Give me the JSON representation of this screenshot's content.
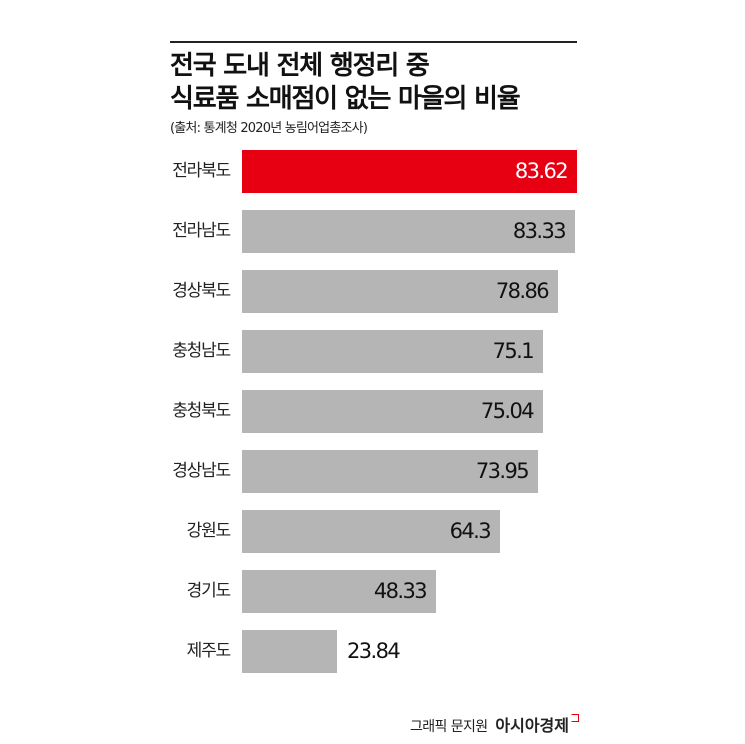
{
  "header": {
    "title_line1": "전국 도내 전체 행정리 중",
    "title_line2": "식료품 소매점이 없는 마을의 비율",
    "source": "(출처: 통계청 2020년 농림어업총조사)"
  },
  "rows": [
    {
      "label": "전라북도",
      "value": "83.62"
    },
    {
      "label": "전라남도",
      "value": "83.33"
    },
    {
      "label": "경상북도",
      "value": "78.86"
    },
    {
      "label": "충청남도",
      "value": "75.1"
    },
    {
      "label": "충청북도",
      "value": "75.04"
    },
    {
      "label": "경상남도",
      "value": "73.95"
    },
    {
      "label": "강원도",
      "value": "64.3"
    },
    {
      "label": "경기도",
      "value": "48.33"
    },
    {
      "label": "제주도",
      "value": "23.84"
    }
  ],
  "footer": {
    "credit": "그래픽 문지원",
    "brand": "아시아경제"
  },
  "colors": {
    "highlight": "#e60012",
    "bar": "#b4b5b4",
    "text": "#111111"
  },
  "chart_data": {
    "type": "bar",
    "orientation": "horizontal",
    "title": "전국 도내 전체 행정리 중 식료품 소매점이 없는 마을의 비율",
    "subtitle": "(출처: 통계청 2020년 농림어업총조사)",
    "categories": [
      "전라북도",
      "전라남도",
      "경상북도",
      "충청남도",
      "충청북도",
      "경상남도",
      "강원도",
      "경기도",
      "제주도"
    ],
    "values": [
      83.62,
      83.33,
      78.86,
      75.1,
      75.04,
      73.95,
      64.3,
      48.33,
      23.84
    ],
    "highlighted": [
      "전라북도"
    ],
    "xlabel": "",
    "ylabel": "",
    "unit": "%",
    "grid": false,
    "legend": null,
    "data_labels": true
  }
}
